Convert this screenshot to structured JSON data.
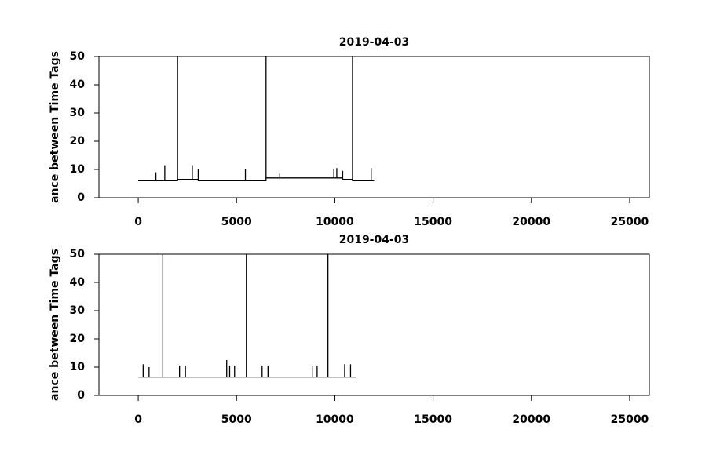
{
  "chart_data": [
    {
      "type": "line",
      "title": "2019-04-03",
      "y_label": "ance between Time Tags",
      "color": "#000000",
      "x": [
        0,
        900,
        900,
        900,
        1350,
        1350,
        1350,
        2000,
        2000,
        2000,
        2750,
        2750,
        2750,
        3050,
        3050,
        3050,
        5450,
        5450,
        5450,
        6500,
        6500,
        6500,
        7200,
        7200,
        7200,
        9950,
        9950,
        9950,
        10100,
        10100,
        10100,
        10400,
        10400,
        10400,
        10900,
        10900,
        10900,
        11850,
        11850,
        11850,
        12000
      ],
      "values": [
        6,
        6,
        9,
        6,
        6,
        11.5,
        6,
        6,
        50,
        6.5,
        6.5,
        11.5,
        6.5,
        6.5,
        10,
        6,
        6,
        10,
        6,
        6,
        50,
        7,
        7,
        8.5,
        7,
        7,
        10,
        7,
        7,
        10.5,
        7,
        7,
        9.5,
        6.5,
        6.5,
        50,
        6,
        6,
        10.5,
        6,
        6
      ],
      "xlim": [
        -2000,
        26000
      ],
      "xticks": [
        0,
        5000,
        10000,
        15000,
        20000,
        25000
      ],
      "ylim": [
        0,
        50
      ],
      "yticks": [
        0,
        10,
        20,
        30,
        40,
        50
      ]
    },
    {
      "type": "line",
      "title": "2019-04-03",
      "y_label": "ance between Time Tags",
      "color": "#000000",
      "x": [
        0,
        250,
        250,
        250,
        550,
        550,
        550,
        1250,
        1250,
        1250,
        2100,
        2100,
        2100,
        2400,
        2400,
        2400,
        4500,
        4500,
        4500,
        4650,
        4650,
        4650,
        4900,
        4900,
        4900,
        5500,
        5500,
        5500,
        6300,
        6300,
        6300,
        6600,
        6600,
        6600,
        8850,
        8850,
        8850,
        9100,
        9100,
        9100,
        9650,
        9650,
        9650,
        10500,
        10500,
        10500,
        10800,
        10800,
        10800,
        11100
      ],
      "values": [
        6.5,
        6.5,
        11,
        6.5,
        6.5,
        10,
        6.5,
        6.5,
        50,
        6.5,
        6.5,
        10.5,
        6.5,
        6.5,
        10.5,
        6.5,
        6.5,
        12.5,
        6.5,
        6.5,
        10.5,
        6.5,
        6.5,
        10.5,
        6.5,
        6.5,
        50,
        6.5,
        6.5,
        10.5,
        6.5,
        6.5,
        10.5,
        6.5,
        6.5,
        10.5,
        6.5,
        6.5,
        10.5,
        6.5,
        6.5,
        50,
        6.5,
        6.5,
        11,
        6.5,
        6.5,
        11,
        6.5,
        6.5
      ],
      "xlim": [
        -2000,
        26000
      ],
      "xticks": [
        0,
        5000,
        10000,
        15000,
        20000,
        25000
      ],
      "ylim": [
        0,
        50
      ],
      "yticks": [
        0,
        10,
        20,
        30,
        40,
        50
      ]
    }
  ]
}
